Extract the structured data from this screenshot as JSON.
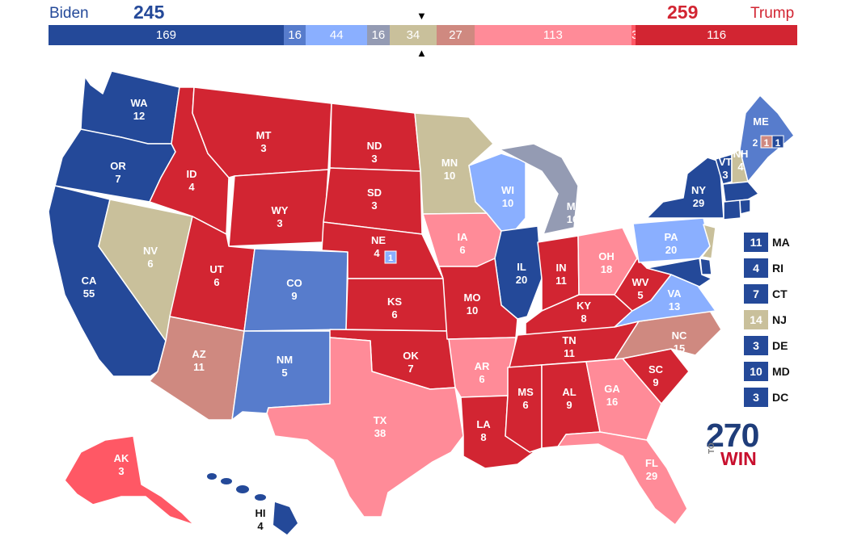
{
  "header": {
    "dem": {
      "name": "Biden",
      "total": "245",
      "color": "#244999"
    },
    "rep": {
      "name": "Trump",
      "total": "259",
      "color": "#d22532"
    }
  },
  "bar_segments": [
    {
      "value": 169,
      "label": "169",
      "color": "#244999"
    },
    {
      "value": 16,
      "label": "16",
      "color": "#577ccc"
    },
    {
      "value": 44,
      "label": "44",
      "color": "#8aafff"
    },
    {
      "value": 16,
      "label": "16",
      "color": "#949bb3"
    },
    {
      "value": 34,
      "label": "34",
      "color": "#c9c09b"
    },
    {
      "value": 27,
      "label": "27",
      "color": "#cf8980"
    },
    {
      "value": 113,
      "label": "113",
      "color": "#ff8b98"
    },
    {
      "value": 3,
      "label": "3",
      "color": "#ff5865"
    },
    {
      "value": 116,
      "label": "116",
      "color": "#d22532"
    }
  ],
  "legend_colors": {
    "safe_dem": "#244999",
    "likely_dem": "#577ccc",
    "lean_dem": "#8aafff",
    "tilt_dem": "#949bb3",
    "tossup": "#c9c09b",
    "tilt_rep": "#cf8980",
    "lean_rep": "#ff8b98",
    "likely_rep": "#ff5865",
    "safe_rep": "#d22532"
  },
  "states": {
    "WA": {
      "abbr": "WA",
      "ev": "12",
      "rating": "safe_dem"
    },
    "OR": {
      "abbr": "OR",
      "ev": "7",
      "rating": "safe_dem"
    },
    "CA": {
      "abbr": "CA",
      "ev": "55",
      "rating": "safe_dem"
    },
    "NV": {
      "abbr": "NV",
      "ev": "6",
      "rating": "tossup"
    },
    "ID": {
      "abbr": "ID",
      "ev": "4",
      "rating": "safe_rep"
    },
    "MT": {
      "abbr": "MT",
      "ev": "3",
      "rating": "safe_rep"
    },
    "WY": {
      "abbr": "WY",
      "ev": "3",
      "rating": "safe_rep"
    },
    "UT": {
      "abbr": "UT",
      "ev": "6",
      "rating": "safe_rep"
    },
    "AZ": {
      "abbr": "AZ",
      "ev": "11",
      "rating": "tilt_rep"
    },
    "CO": {
      "abbr": "CO",
      "ev": "9",
      "rating": "likely_dem"
    },
    "NM": {
      "abbr": "NM",
      "ev": "5",
      "rating": "likely_dem"
    },
    "ND": {
      "abbr": "ND",
      "ev": "3",
      "rating": "safe_rep"
    },
    "SD": {
      "abbr": "SD",
      "ev": "3",
      "rating": "safe_rep"
    },
    "NE": {
      "abbr": "NE",
      "ev": "4",
      "rating": "safe_rep",
      "district_ev": "1",
      "district_rating": "lean_dem"
    },
    "KS": {
      "abbr": "KS",
      "ev": "6",
      "rating": "safe_rep"
    },
    "OK": {
      "abbr": "OK",
      "ev": "7",
      "rating": "safe_rep"
    },
    "TX": {
      "abbr": "TX",
      "ev": "38",
      "rating": "lean_rep"
    },
    "MN": {
      "abbr": "MN",
      "ev": "10",
      "rating": "tossup"
    },
    "IA": {
      "abbr": "IA",
      "ev": "6",
      "rating": "lean_rep"
    },
    "MO": {
      "abbr": "MO",
      "ev": "10",
      "rating": "safe_rep"
    },
    "AR": {
      "abbr": "AR",
      "ev": "6",
      "rating": "lean_rep"
    },
    "LA": {
      "abbr": "LA",
      "ev": "8",
      "rating": "safe_rep"
    },
    "WI": {
      "abbr": "WI",
      "ev": "10",
      "rating": "lean_dem"
    },
    "IL": {
      "abbr": "IL",
      "ev": "20",
      "rating": "safe_dem"
    },
    "MI": {
      "abbr": "MI",
      "ev": "16",
      "rating": "tilt_dem"
    },
    "IN": {
      "abbr": "IN",
      "ev": "11",
      "rating": "safe_rep"
    },
    "OH": {
      "abbr": "OH",
      "ev": "18",
      "rating": "lean_rep"
    },
    "KY": {
      "abbr": "KY",
      "ev": "8",
      "rating": "safe_rep"
    },
    "TN": {
      "abbr": "TN",
      "ev": "11",
      "rating": "safe_rep"
    },
    "MS": {
      "abbr": "MS",
      "ev": "6",
      "rating": "safe_rep"
    },
    "AL": {
      "abbr": "AL",
      "ev": "9",
      "rating": "safe_rep"
    },
    "GA": {
      "abbr": "GA",
      "ev": "16",
      "rating": "lean_rep"
    },
    "FL": {
      "abbr": "FL",
      "ev": "29",
      "rating": "lean_rep"
    },
    "SC": {
      "abbr": "SC",
      "ev": "9",
      "rating": "safe_rep"
    },
    "NC": {
      "abbr": "NC",
      "ev": "15",
      "rating": "tilt_rep"
    },
    "VA": {
      "abbr": "VA",
      "ev": "13",
      "rating": "lean_dem"
    },
    "WV": {
      "abbr": "WV",
      "ev": "5",
      "rating": "safe_rep"
    },
    "PA": {
      "abbr": "PA",
      "ev": "20",
      "rating": "lean_dem"
    },
    "NY": {
      "abbr": "NY",
      "ev": "29",
      "rating": "safe_dem"
    },
    "VT": {
      "abbr": "VT",
      "ev": "3",
      "rating": "safe_dem"
    },
    "NH": {
      "abbr": "NH",
      "ev": "4",
      "rating": "tossup"
    },
    "ME": {
      "abbr": "ME",
      "ev_parts": [
        "2",
        "1",
        "1"
      ],
      "rating": "likely_dem",
      "part_ratings": [
        "likely_dem",
        "tilt_rep",
        "safe_dem"
      ]
    },
    "MA": {
      "abbr": "MA",
      "ev": "11",
      "rating": "safe_dem"
    },
    "RI": {
      "abbr": "RI",
      "ev": "4",
      "rating": "safe_dem"
    },
    "CT": {
      "abbr": "CT",
      "ev": "7",
      "rating": "safe_dem"
    },
    "NJ": {
      "abbr": "NJ",
      "ev": "14",
      "rating": "tossup"
    },
    "DE": {
      "abbr": "DE",
      "ev": "3",
      "rating": "safe_dem"
    },
    "MD": {
      "abbr": "MD",
      "ev": "10",
      "rating": "safe_dem"
    },
    "DC": {
      "abbr": "DC",
      "ev": "3",
      "rating": "safe_dem"
    },
    "AK": {
      "abbr": "AK",
      "ev": "3",
      "rating": "likely_rep"
    },
    "HI": {
      "abbr": "HI",
      "ev": "4",
      "rating": "safe_dem"
    }
  },
  "small_states": [
    {
      "abbr": "MA",
      "ev": "11",
      "rating": "safe_dem"
    },
    {
      "abbr": "RI",
      "ev": "4",
      "rating": "safe_dem"
    },
    {
      "abbr": "CT",
      "ev": "7",
      "rating": "safe_dem"
    },
    {
      "abbr": "NJ",
      "ev": "14",
      "rating": "tossup"
    },
    {
      "abbr": "DE",
      "ev": "3",
      "rating": "safe_dem"
    },
    {
      "abbr": "MD",
      "ev": "10",
      "rating": "safe_dem"
    },
    {
      "abbr": "DC",
      "ev": "3",
      "rating": "safe_dem"
    }
  ],
  "logo": {
    "number": "270",
    "to": "TO",
    "win": "WIN"
  }
}
